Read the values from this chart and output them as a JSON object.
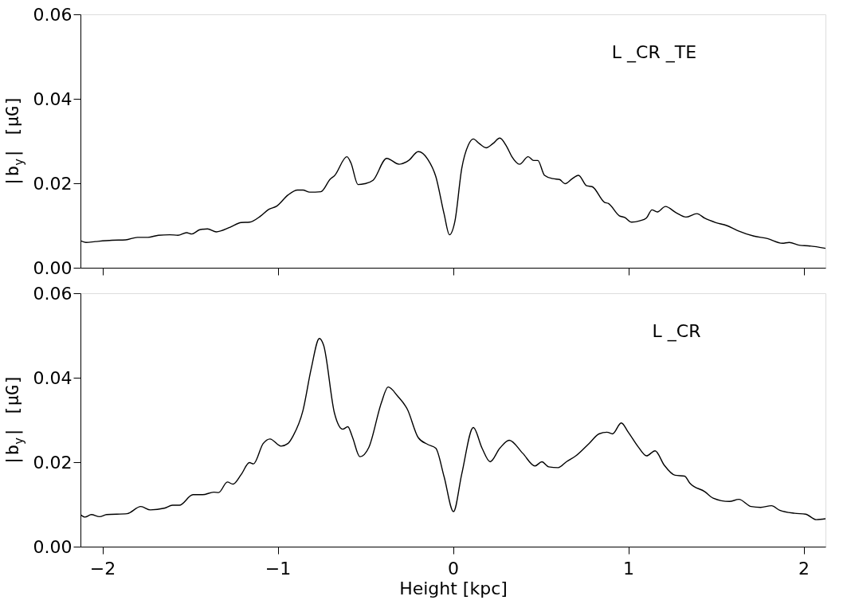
{
  "chart_data": [
    {
      "type": "line",
      "ylabel": "|b$_{y}$| [μG]",
      "annotations": [
        "L _CR _TE"
      ],
      "xlim": [
        -2.125,
        2.125
      ],
      "xticks": [
        -2,
        -1,
        0,
        1,
        2
      ],
      "ylim": [
        0,
        0.06
      ],
      "yticks": [
        {
          "value": 0,
          "label": "0.00"
        },
        {
          "value": 0.02,
          "label": "0.02"
        },
        {
          "value": 0.04,
          "label": "0.04"
        },
        {
          "value": 0.06,
          "label": "0.06"
        }
      ],
      "tick_labels": "y",
      "grid": false,
      "series": [
        {
          "color": "#000000",
          "x": [
            -2.125,
            -2.094,
            -2.04,
            -1.945,
            -1.867,
            -1.8,
            -1.74,
            -1.68,
            -1.616,
            -1.569,
            -1.52,
            -1.49,
            -1.444,
            -1.4,
            -1.35,
            -1.271,
            -1.208,
            -1.16,
            -1.099,
            -1.052,
            -1.005,
            -0.942,
            -0.887,
            -0.856,
            -0.817,
            -0.754,
            -0.7,
            -0.676,
            -0.605,
            -0.582,
            -0.542,
            -0.503,
            -0.456,
            -0.378,
            -0.307,
            -0.253,
            -0.198,
            -0.144,
            -0.098,
            -0.051,
            -0.02,
            0.011,
            0.05,
            0.088,
            0.116,
            0.15,
            0.189,
            0.228,
            0.267,
            0.305,
            0.336,
            0.38,
            0.429,
            0.46,
            0.484,
            0.522,
            0.569,
            0.608,
            0.639,
            0.678,
            0.716,
            0.763,
            0.794,
            0.864,
            0.887,
            0.949,
            0.98,
            1.019,
            1.065,
            1.104,
            1.135,
            1.166,
            1.212,
            1.274,
            1.329,
            1.391,
            1.437,
            1.499,
            1.561,
            1.623,
            1.716,
            1.794,
            1.879,
            1.918,
            1.98,
            2.026,
            2.125
          ],
          "values": [
            0.0064,
            0.006,
            0.0062,
            0.0065,
            0.0066,
            0.0072,
            0.0072,
            0.0077,
            0.0078,
            0.0077,
            0.0083,
            0.008,
            0.009,
            0.0092,
            0.0085,
            0.0096,
            0.0107,
            0.0108,
            0.0122,
            0.0138,
            0.0146,
            0.0172,
            0.0184,
            0.0184,
            0.0179,
            0.018,
            0.021,
            0.0218,
            0.0263,
            0.0248,
            0.0197,
            0.0199,
            0.0207,
            0.0259,
            0.0245,
            0.0254,
            0.0275,
            0.0257,
            0.0216,
            0.0128,
            0.0078,
            0.011,
            0.0235,
            0.0291,
            0.0305,
            0.0294,
            0.0284,
            0.0294,
            0.0307,
            0.0288,
            0.0263,
            0.0245,
            0.0263,
            0.0254,
            0.0254,
            0.0219,
            0.0211,
            0.0209,
            0.0199,
            0.021,
            0.0219,
            0.0194,
            0.0192,
            0.0155,
            0.0152,
            0.0123,
            0.0119,
            0.0108,
            0.0111,
            0.0118,
            0.0137,
            0.0132,
            0.0145,
            0.013,
            0.012,
            0.0128,
            0.0117,
            0.0107,
            0.01,
            0.0088,
            0.0075,
            0.0069,
            0.0058,
            0.006,
            0.0053,
            0.0052,
            0.0046
          ]
        }
      ]
    },
    {
      "type": "line",
      "xlabel": "Height [kpc]",
      "ylabel": "|b$_{y}$| [μG]",
      "annotations": [
        "L _CR"
      ],
      "xlim": [
        -2.125,
        2.125
      ],
      "xticks": [
        -2,
        -1,
        0,
        1,
        2
      ],
      "ylim": [
        0,
        0.06
      ],
      "yticks": [
        {
          "value": 0,
          "label": "0.00"
        },
        {
          "value": 0.02,
          "label": "0.02"
        },
        {
          "value": 0.04,
          "label": "0.04"
        },
        {
          "value": 0.06,
          "label": "0.06"
        }
      ],
      "grid": false,
      "series": [
        {
          "color": "#000000",
          "x": [
            -2.125,
            -2.099,
            -2.063,
            -2.016,
            -1.976,
            -1.859,
            -1.781,
            -1.726,
            -1.647,
            -1.6,
            -1.561,
            -1.483,
            -1.428,
            -1.365,
            -1.337,
            -1.287,
            -1.255,
            -1.208,
            -1.161,
            -1.138,
            -1.083,
            -1.044,
            -0.981,
            -0.942,
            -0.911,
            -0.856,
            -0.809,
            -0.762,
            -0.738,
            -0.676,
            -0.629,
            -0.6,
            -0.574,
            -0.531,
            -0.48,
            -0.409,
            -0.37,
            -0.315,
            -0.26,
            -0.198,
            -0.144,
            -0.098,
            -0.051,
            0.003,
            0.05,
            0.116,
            0.166,
            0.212,
            0.267,
            0.321,
            0.398,
            0.468,
            0.507,
            0.546,
            0.6,
            0.647,
            0.701,
            0.778,
            0.833,
            0.879,
            0.91,
            0.96,
            1.0,
            1.057,
            1.104,
            1.153,
            1.205,
            1.267,
            1.321,
            1.352,
            1.437,
            1.484,
            1.577,
            1.631,
            1.701,
            1.755,
            1.817,
            1.864,
            1.949,
            2.011,
            2.073,
            2.125
          ],
          "values": [
            0.0076,
            0.007,
            0.0076,
            0.0071,
            0.0076,
            0.0078,
            0.0095,
            0.0087,
            0.0091,
            0.0098,
            0.0098,
            0.0123,
            0.0123,
            0.0129,
            0.0128,
            0.0153,
            0.0148,
            0.0171,
            0.0199,
            0.0196,
            0.0244,
            0.0255,
            0.0238,
            0.0244,
            0.0263,
            0.0322,
            0.0421,
            0.0493,
            0.0477,
            0.0316,
            0.0278,
            0.0284,
            0.026,
            0.0213,
            0.0235,
            0.034,
            0.0378,
            0.0356,
            0.0325,
            0.0258,
            0.0242,
            0.0233,
            0.0166,
            0.0083,
            0.0172,
            0.0282,
            0.0233,
            0.0201,
            0.0233,
            0.0252,
            0.0221,
            0.0191,
            0.0201,
            0.0189,
            0.0187,
            0.0201,
            0.0215,
            0.0245,
            0.0267,
            0.0271,
            0.0267,
            0.0293,
            0.0271,
            0.0236,
            0.0215,
            0.0227,
            0.0193,
            0.0169,
            0.0167,
            0.015,
            0.013,
            0.0115,
            0.0107,
            0.0112,
            0.0095,
            0.0093,
            0.0097,
            0.0086,
            0.0079,
            0.0077,
            0.0064,
            0.0066
          ]
        }
      ]
    }
  ]
}
